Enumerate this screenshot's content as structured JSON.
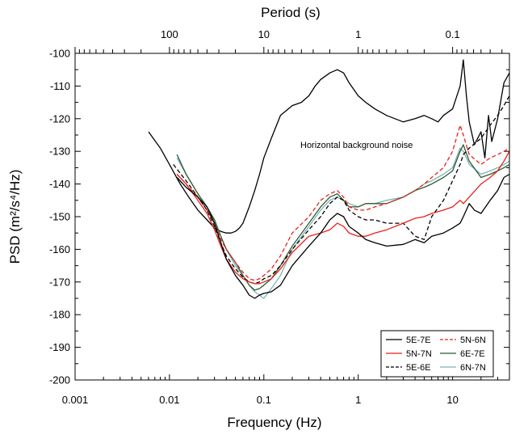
{
  "chart_data": {
    "type": "line",
    "title": "",
    "xlabel": "Frequency (Hz)",
    "ylabel": "PSD (m²/s⁴/Hz)",
    "top_xlabel": "Period (s)",
    "x_scale": "log",
    "xlim": [
      0.001,
      40
    ],
    "ylim": [
      -200,
      -100
    ],
    "x_ticks": [
      0.001,
      0.01,
      0.1,
      1,
      10
    ],
    "x_tick_labels": [
      "0.001",
      "0.01",
      "0.1",
      "1",
      "10"
    ],
    "y_ticks": [
      -200,
      -190,
      -180,
      -170,
      -160,
      -150,
      -140,
      -130,
      -120,
      -110,
      -100
    ],
    "y_tick_labels": [
      "-200",
      "-190",
      "-180",
      "-170",
      "-160",
      "-150",
      "-140",
      "-130",
      "-120",
      "-110",
      "-100"
    ],
    "top_ticks_period": [
      100,
      10,
      1,
      0.1
    ],
    "top_tick_labels": [
      "100",
      "10",
      "1",
      "0.1"
    ],
    "annotation": "Horizontal background noise",
    "legend_position": "bottom-right",
    "series": [
      {
        "name": "Horizontal background noise",
        "legend": false,
        "color": "#000000",
        "dash": "solid",
        "x": [
          0.006,
          0.008,
          0.01,
          0.013,
          0.016,
          0.02,
          0.025,
          0.03,
          0.035,
          0.04,
          0.045,
          0.05,
          0.055,
          0.06,
          0.07,
          0.08,
          0.09,
          0.1,
          0.12,
          0.15,
          0.2,
          0.25,
          0.3,
          0.35,
          0.4,
          0.5,
          0.6,
          0.7,
          0.8,
          1,
          1.2,
          1.5,
          2,
          3,
          4,
          5,
          6,
          7,
          8,
          10,
          12,
          13,
          14,
          15,
          17,
          20,
          22,
          24,
          26,
          30,
          35,
          40
        ],
        "y": [
          -124,
          -129,
          -134,
          -140,
          -144,
          -148,
          -151,
          -153.5,
          -154.5,
          -155,
          -155,
          -154.5,
          -153.5,
          -152,
          -147,
          -142,
          -137,
          -132,
          -126,
          -119,
          -116,
          -115,
          -113,
          -110,
          -108,
          -106,
          -105,
          -106,
          -109,
          -113,
          -115,
          -117,
          -119,
          -121,
          -120,
          -119,
          -120,
          -121,
          -119,
          -117,
          -110,
          -102,
          -113,
          -121,
          -128,
          -124,
          -132,
          -119,
          -127,
          -120,
          -109,
          -106
        ]
      },
      {
        "name": "5E-7E",
        "legend": true,
        "color": "#000000",
        "dash": "solid",
        "x": [
          0.012,
          0.015,
          0.02,
          0.025,
          0.03,
          0.035,
          0.04,
          0.05,
          0.06,
          0.07,
          0.08,
          0.09,
          0.1,
          0.12,
          0.15,
          0.2,
          0.3,
          0.4,
          0.5,
          0.6,
          0.7,
          0.8,
          1,
          1.2,
          1.5,
          2,
          3,
          4,
          5,
          6,
          8,
          10,
          12,
          13,
          15,
          17,
          20,
          25,
          30,
          35,
          40
        ],
        "y": [
          -138,
          -141,
          -144,
          -147,
          -152,
          -158,
          -163,
          -168,
          -171,
          -174,
          -175,
          -174,
          -173.5,
          -173,
          -171,
          -165,
          -159,
          -155,
          -151,
          -149,
          -150,
          -153,
          -155,
          -157,
          -158,
          -159,
          -158.5,
          -157,
          -158,
          -156,
          -155,
          -153.5,
          -152,
          -150,
          -146,
          -148,
          -149,
          -145,
          -142,
          -138,
          -137
        ]
      },
      {
        "name": "5N-7N",
        "legend": true,
        "color": "#e8211b",
        "dash": "solid",
        "x": [
          0.012,
          0.015,
          0.02,
          0.025,
          0.03,
          0.035,
          0.04,
          0.05,
          0.06,
          0.07,
          0.08,
          0.09,
          0.1,
          0.12,
          0.15,
          0.2,
          0.3,
          0.4,
          0.5,
          0.6,
          0.7,
          0.8,
          1,
          1.2,
          1.5,
          2,
          3,
          4,
          5,
          6,
          8,
          10,
          12,
          13,
          15,
          20,
          25,
          30,
          35,
          40
        ],
        "y": [
          -137,
          -140,
          -145,
          -149,
          -154,
          -159,
          -163,
          -167,
          -169,
          -170,
          -170.5,
          -170.5,
          -170,
          -169,
          -166,
          -161,
          -156,
          -155,
          -154,
          -152,
          -153,
          -155,
          -156,
          -156,
          -155,
          -154,
          -152,
          -150.5,
          -150,
          -149,
          -148,
          -147,
          -145,
          -146,
          -144,
          -140,
          -138,
          -136,
          -133,
          -130
        ]
      },
      {
        "name": "5E-6E",
        "legend": true,
        "color": "#000000",
        "dash": "dashed",
        "x": [
          0.011,
          0.015,
          0.02,
          0.025,
          0.03,
          0.035,
          0.04,
          0.05,
          0.06,
          0.07,
          0.08,
          0.09,
          0.1,
          0.12,
          0.15,
          0.2,
          0.3,
          0.4,
          0.5,
          0.6,
          0.7,
          0.8,
          1,
          1.2,
          1.5,
          2,
          3,
          4,
          5,
          6,
          8,
          10,
          12,
          13,
          15,
          20,
          25,
          30,
          35,
          40
        ],
        "y": [
          -134,
          -139,
          -144,
          -148,
          -153,
          -158,
          -162,
          -166,
          -168.5,
          -170,
          -170.5,
          -170,
          -169,
          -168,
          -165,
          -160,
          -154,
          -150,
          -146,
          -144,
          -145,
          -148,
          -150,
          -151,
          -151,
          -152,
          -152,
          -156,
          -157,
          -150,
          -145,
          -139,
          -134,
          -131,
          -129,
          -126,
          -122,
          -119,
          -116,
          -113
        ]
      },
      {
        "name": "5N-6N",
        "legend": true,
        "color": "#e8211b",
        "dash": "dashed",
        "x": [
          0.012,
          0.015,
          0.02,
          0.025,
          0.03,
          0.035,
          0.04,
          0.05,
          0.06,
          0.07,
          0.08,
          0.09,
          0.1,
          0.12,
          0.15,
          0.2,
          0.3,
          0.4,
          0.5,
          0.6,
          0.7,
          0.8,
          1,
          1.2,
          1.5,
          2,
          3,
          4,
          5,
          6,
          8,
          10,
          12,
          13,
          15,
          20,
          25,
          30,
          35,
          40
        ],
        "y": [
          -137,
          -140,
          -144,
          -148,
          -152,
          -157,
          -160,
          -164,
          -167,
          -169,
          -169.5,
          -169,
          -168,
          -166,
          -162,
          -155,
          -150,
          -145,
          -143,
          -142,
          -144,
          -147,
          -148,
          -148,
          -147,
          -146,
          -144,
          -142,
          -140,
          -138,
          -135,
          -130,
          -122,
          -125,
          -131,
          -134,
          -132,
          -131,
          -130,
          -129
        ]
      },
      {
        "name": "6E-7E",
        "legend": true,
        "color": "#2e5b33",
        "dash": "solid",
        "x": [
          0.012,
          0.015,
          0.02,
          0.025,
          0.03,
          0.035,
          0.04,
          0.05,
          0.06,
          0.07,
          0.08,
          0.09,
          0.1,
          0.12,
          0.15,
          0.2,
          0.3,
          0.4,
          0.5,
          0.6,
          0.7,
          0.8,
          1,
          1.2,
          1.5,
          2,
          3,
          4,
          5,
          6,
          8,
          10,
          12,
          13,
          15,
          20,
          25,
          30,
          35,
          40
        ],
        "y": [
          -131,
          -137,
          -143,
          -147,
          -151,
          -156,
          -160,
          -164,
          -168,
          -171,
          -172.5,
          -172,
          -171,
          -169,
          -165,
          -159,
          -152,
          -147,
          -144,
          -143,
          -145,
          -147,
          -147,
          -146,
          -146,
          -146,
          -144,
          -142,
          -141,
          -140,
          -138,
          -136,
          -130,
          -128,
          -133,
          -138,
          -137,
          -136,
          -135,
          -134
        ]
      },
      {
        "name": "6N-7N",
        "legend": true,
        "color": "#7fb2b8",
        "dash": "solid",
        "x": [
          0.012,
          0.015,
          0.02,
          0.025,
          0.03,
          0.035,
          0.04,
          0.05,
          0.06,
          0.07,
          0.08,
          0.09,
          0.1,
          0.12,
          0.15,
          0.2,
          0.3,
          0.4,
          0.5,
          0.6,
          0.7,
          0.8,
          1,
          1.2,
          1.5,
          2,
          3,
          4,
          5,
          6,
          8,
          10,
          12,
          13,
          15,
          20,
          25,
          30,
          35,
          40
        ],
        "y": [
          -132,
          -137,
          -143,
          -147,
          -151,
          -156,
          -160,
          -165,
          -168,
          -171,
          -173,
          -174,
          -175,
          -172,
          -168,
          -160,
          -153,
          -148,
          -145,
          -144,
          -145,
          -146,
          -147,
          -146,
          -146,
          -145,
          -144,
          -142,
          -140,
          -139,
          -137,
          -135,
          -129,
          -130,
          -134,
          -137,
          -136,
          -135,
          -134,
          -133
        ]
      }
    ]
  }
}
